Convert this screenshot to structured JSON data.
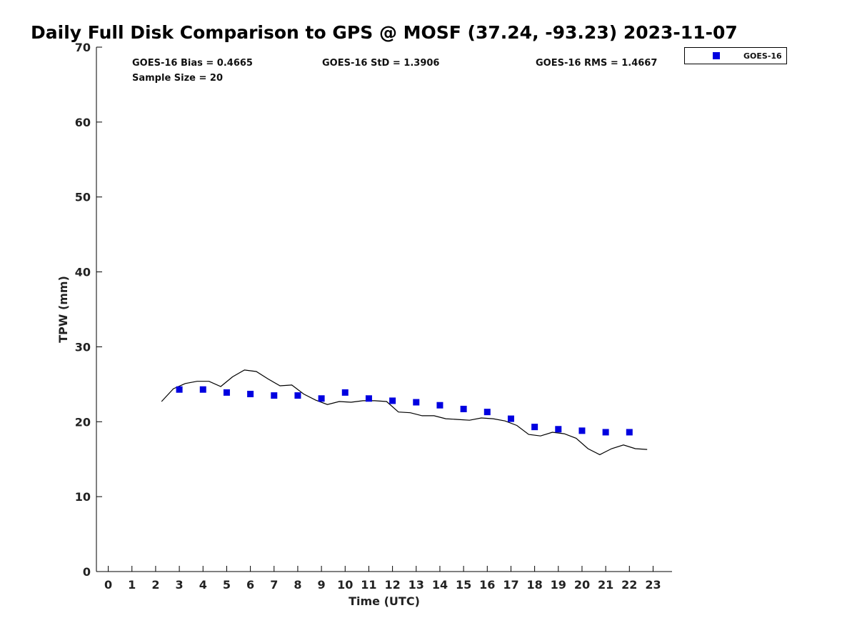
{
  "chart_data": {
    "type": "scatter",
    "title": "Daily Full Disk Comparison to GPS @ MOSF (37.24, -93.23) 2023-11-07",
    "xlabel": "Time (UTC)",
    "ylabel": "TPW (mm)",
    "xlim": [
      -0.5,
      23.8
    ],
    "ylim": [
      0,
      70
    ],
    "x_ticks": [
      0,
      1,
      2,
      3,
      4,
      5,
      6,
      7,
      8,
      9,
      10,
      11,
      12,
      13,
      14,
      15,
      16,
      17,
      18,
      19,
      20,
      21,
      22,
      23
    ],
    "y_ticks": [
      0,
      10,
      20,
      30,
      40,
      50,
      60,
      70
    ],
    "grid": false,
    "legend_position": "top-right",
    "stats": {
      "bias": "GOES-16 Bias = 0.4665",
      "std": "GOES-16 StD = 1.3906",
      "rms": "GOES-16 RMS = 1.4667",
      "sample": "Sample Size = 20"
    },
    "series": [
      {
        "name": "GOES-16",
        "kind": "scatter",
        "marker": "square",
        "color": "#0000e0",
        "x": [
          3,
          4,
          5,
          6,
          7,
          8,
          9,
          10,
          11,
          12,
          13,
          14,
          15,
          16,
          17,
          18,
          19,
          20,
          21,
          22
        ],
        "y": [
          24.3,
          24.3,
          23.9,
          23.7,
          23.5,
          23.5,
          23.1,
          23.9,
          23.1,
          22.8,
          22.6,
          22.2,
          21.7,
          21.3,
          20.4,
          19.3,
          19.0,
          18.8,
          18.6,
          18.6
        ]
      },
      {
        "kind": "line",
        "color": "#000000",
        "x": [
          2.25,
          2.75,
          3.25,
          3.75,
          4.25,
          4.75,
          5.25,
          5.75,
          6.25,
          6.75,
          7.25,
          7.75,
          8.25,
          8.75,
          9.25,
          9.75,
          10.25,
          10.75,
          11.25,
          11.75,
          12.25,
          12.75,
          13.25,
          13.75,
          14.25,
          14.75,
          15.25,
          15.75,
          16.25,
          16.75,
          17.25,
          17.75,
          18.25,
          18.75,
          19.25,
          19.75,
          20.25,
          20.75,
          21.25,
          21.75,
          22.25,
          22.75
        ],
        "y": [
          22.7,
          24.4,
          25.1,
          25.4,
          25.4,
          24.7,
          26.0,
          26.9,
          26.7,
          25.7,
          24.8,
          24.9,
          23.7,
          22.9,
          22.3,
          22.7,
          22.6,
          22.8,
          22.8,
          22.7,
          21.3,
          21.2,
          20.8,
          20.8,
          20.4,
          20.3,
          20.2,
          20.5,
          20.4,
          20.1,
          19.5,
          18.3,
          18.1,
          18.6,
          18.4,
          17.8,
          16.4,
          15.6,
          16.4,
          16.9,
          16.4,
          16.3
        ]
      }
    ]
  }
}
